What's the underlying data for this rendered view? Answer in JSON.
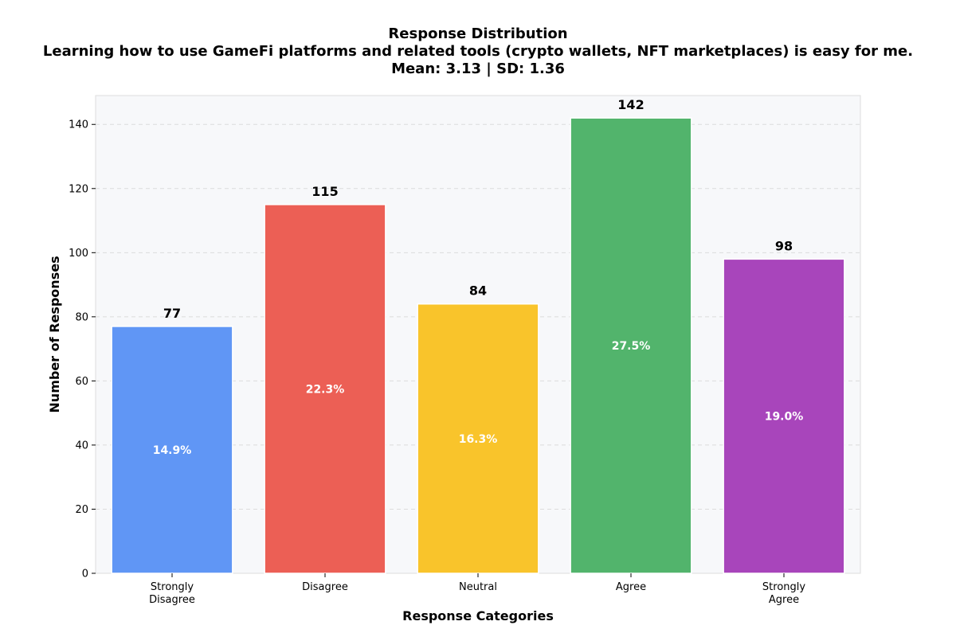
{
  "chart_data": {
    "type": "bar",
    "title": "Response Distribution",
    "subtitle": "Learning how to use GameFi platforms and related tools (crypto wallets, NFT marketplaces) is easy for me.",
    "stats_line": "Mean: 3.13 | SD: 1.36",
    "xlabel": "Response Categories",
    "ylabel": "Number of Responses",
    "categories": [
      [
        "Strongly",
        "Disagree"
      ],
      [
        "Disagree"
      ],
      [
        "Neutral"
      ],
      [
        "Agree"
      ],
      [
        "Strongly",
        "Agree"
      ]
    ],
    "values": [
      77,
      115,
      84,
      142,
      98
    ],
    "value_labels": [
      "77",
      "115",
      "84",
      "142",
      "98"
    ],
    "percent_labels": [
      "14.9%",
      "22.3%",
      "16.3%",
      "27.5%",
      "19.0%"
    ],
    "colors": [
      "#6096f5",
      "#ec5f55",
      "#f9c42b",
      "#52b46c",
      "#a845bb"
    ],
    "ylim": [
      0,
      149
    ],
    "yticks": [
      0,
      20,
      40,
      60,
      80,
      100,
      120,
      140
    ],
    "grid": true,
    "legend": "none"
  }
}
